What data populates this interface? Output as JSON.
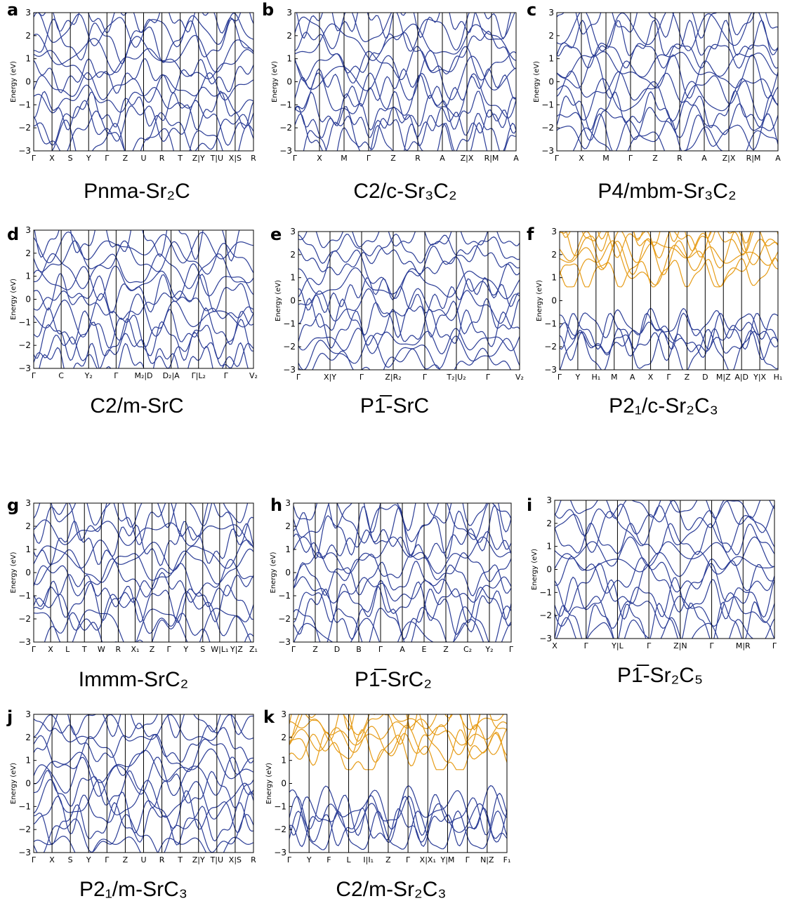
{
  "figure": {
    "ylabel": "Energy (eV)",
    "yticks": [
      "−3",
      "−2",
      "−1",
      "0",
      "1",
      "2",
      "3"
    ],
    "colors": {
      "valence": "#2b3d96",
      "conduction": "#e69c18",
      "frame": "#000000"
    }
  },
  "chart_data": [
    {
      "type": "line",
      "letter": "a",
      "caption": "Pnma-Sr₂C",
      "ylim": [
        -3,
        3
      ],
      "kpoints": [
        "Γ",
        "X",
        "S",
        "Y",
        "Γ",
        "Z",
        "U",
        "R",
        "T",
        "Z|Y",
        "T|U",
        "X|S",
        "R"
      ],
      "band_gap": false
    },
    {
      "type": "line",
      "letter": "b",
      "caption": "C2/c-Sr₃C₂",
      "ylim": [
        -3,
        3
      ],
      "kpoints": [
        "Γ",
        "X",
        "M",
        "Γ",
        "Z",
        "R",
        "A",
        "Z|X",
        "R|M",
        "A"
      ],
      "band_gap": false
    },
    {
      "type": "line",
      "letter": "c",
      "caption": "P4/mbm-Sr₃C₂",
      "ylim": [
        -3,
        3
      ],
      "kpoints": [
        "Γ",
        "X",
        "M",
        "Γ",
        "Z",
        "R",
        "A",
        "Z|X",
        "R|M",
        "A"
      ],
      "band_gap": false
    },
    {
      "type": "line",
      "letter": "d",
      "caption": "C2/m-SrC",
      "ylim": [
        -3,
        3
      ],
      "kpoints": [
        "Γ",
        "C",
        "Y₂",
        "Γ",
        "M₂|D",
        "D₂|A",
        "Γ|L₂",
        "Γ",
        "V₂"
      ],
      "band_gap": false
    },
    {
      "type": "line",
      "letter": "e",
      "caption": "P1̅-SrC",
      "ylim": [
        -3,
        3
      ],
      "kpoints": [
        "Γ",
        "X|Y",
        "Γ",
        "Z|R₂",
        "Γ",
        "T₂|U₂",
        "Γ",
        "V₂"
      ],
      "band_gap": false
    },
    {
      "type": "line",
      "letter": "f",
      "caption": "P2₁/c-Sr₂C₃",
      "ylim": [
        -3,
        3
      ],
      "kpoints": [
        "Γ",
        "Y",
        "H₁",
        "M",
        "A",
        "X",
        "Γ",
        "Z",
        "D",
        "M|Z",
        "A|D",
        "Y|X",
        "H₁"
      ],
      "band_gap": true
    },
    {
      "type": "line",
      "letter": "g",
      "caption": "Immm-SrC₂",
      "ylim": [
        -3,
        3
      ],
      "kpoints": [
        "Γ",
        "X",
        "L",
        "T",
        "W",
        "R",
        "X₁",
        "Z",
        "Γ",
        "Y",
        "S",
        "W|L₁",
        "Y|Z",
        "Z₁"
      ],
      "band_gap": false
    },
    {
      "type": "line",
      "letter": "h",
      "caption": "P1̅-SrC₂",
      "ylim": [
        -3,
        3
      ],
      "kpoints": [
        "Γ",
        "Z",
        "D",
        "B",
        "Γ",
        "A",
        "E",
        "Z",
        "C₂",
        "Y₂",
        "Γ"
      ],
      "band_gap": false
    },
    {
      "type": "line",
      "letter": "i",
      "caption": "P1̅-Sr₂C₅",
      "ylim": [
        -3,
        3
      ],
      "kpoints": [
        "X",
        "Γ",
        "Y|L",
        "Γ",
        "Z|N",
        "Γ",
        "M|R",
        "Γ"
      ],
      "band_gap": false
    },
    {
      "type": "line",
      "letter": "j",
      "caption": "P2₁/m-SrC₃",
      "ylim": [
        -3,
        3
      ],
      "kpoints": [
        "Γ",
        "X",
        "S",
        "Y",
        "Γ",
        "Z",
        "U",
        "R",
        "T",
        "Z|Y",
        "T|U",
        "X|S",
        "R"
      ],
      "band_gap": false
    },
    {
      "type": "line",
      "letter": "k",
      "caption": "C2/m-Sr₂C₃",
      "ylim": [
        -3,
        3
      ],
      "kpoints": [
        "Γ",
        "Y",
        "F",
        "L",
        "I|I₁",
        "Z",
        "Γ",
        "X|X₁",
        "Y|M",
        "Γ",
        "N|Z",
        "F₁"
      ],
      "band_gap": true
    }
  ]
}
